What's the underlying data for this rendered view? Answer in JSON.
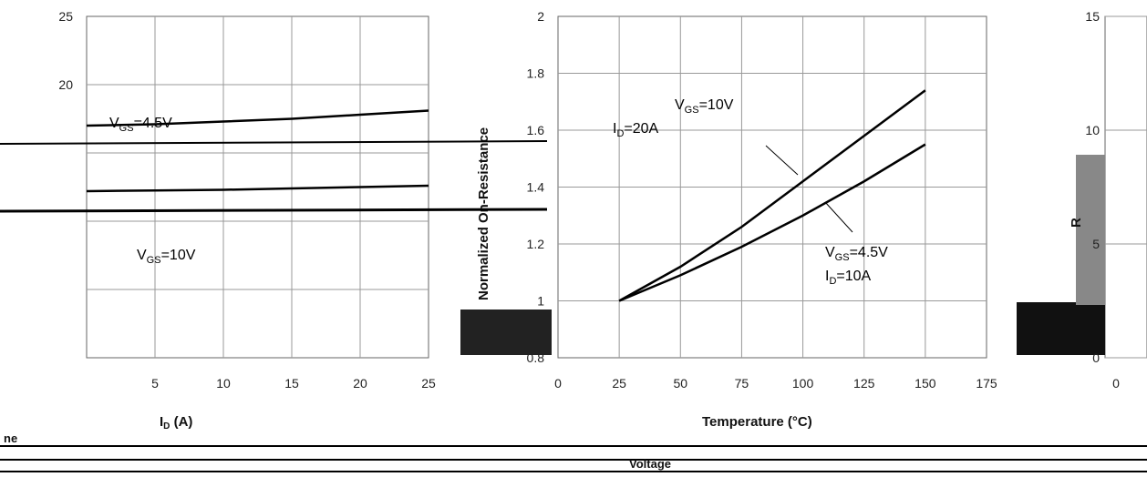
{
  "chart_data": [
    {
      "type": "line",
      "xlabel": "I₂ (A)",
      "xlabel_text": "I",
      "xlabel_sub": "D",
      "xlabel_unit": " (A)",
      "ylabel": "",
      "xlim": [
        0,
        25
      ],
      "ylim": [
        0,
        25
      ],
      "x_ticks": [
        "5",
        "10",
        "15",
        "20",
        "25"
      ],
      "y_ticks": [
        "25",
        "20"
      ],
      "grid": true,
      "series": [
        {
          "name": "V_GS=4.5V",
          "x": [
            0,
            5,
            10,
            15,
            20,
            25
          ],
          "y": [
            17.0,
            17.1,
            17.3,
            17.5,
            17.8,
            18.1
          ]
        },
        {
          "name": "V_GS=10V",
          "x": [
            0,
            5,
            10,
            15,
            20,
            25
          ],
          "y": [
            12.2,
            12.25,
            12.3,
            12.4,
            12.5,
            12.6
          ]
        }
      ],
      "annotations": [
        {
          "text": "V_GS=4.5V",
          "main": "V",
          "sub": "GS",
          "rest": "=4.5V"
        },
        {
          "text": "V_GS=10V",
          "main": "V",
          "sub": "GS",
          "rest": "=10V"
        }
      ]
    },
    {
      "type": "line",
      "xlabel": "Temperature (°C)",
      "ylabel": "Normalized On-Resistance",
      "xlim": [
        0,
        175
      ],
      "ylim": [
        0.8,
        2.0
      ],
      "x_ticks": [
        "0",
        "25",
        "50",
        "75",
        "100",
        "125",
        "150",
        "175"
      ],
      "y_ticks": [
        "2",
        "1.8",
        "1.6",
        "1.4",
        "1.2",
        "1",
        "0.8"
      ],
      "grid": true,
      "series": [
        {
          "name": "V_GS=10V, I_D=20A",
          "x": [
            25,
            50,
            75,
            100,
            125,
            150
          ],
          "y": [
            1.0,
            1.12,
            1.26,
            1.42,
            1.58,
            1.74
          ]
        },
        {
          "name": "V_GS=4.5V, I_D=10A",
          "x": [
            25,
            50,
            75,
            100,
            125,
            150
          ],
          "y": [
            1.0,
            1.09,
            1.19,
            1.3,
            1.42,
            1.55
          ]
        }
      ],
      "annotations": [
        {
          "main": "V",
          "sub": "GS",
          "rest": "=10V"
        },
        {
          "main": "I",
          "sub": "D",
          "rest": "=20A"
        },
        {
          "main": "V",
          "sub": "GS",
          "rest": "=4.5V"
        },
        {
          "main": "I",
          "sub": "D",
          "rest": "=10A"
        }
      ]
    },
    {
      "type": "line",
      "xlabel": "",
      "ylabel": "R",
      "xlim": [
        0,
        10
      ],
      "ylim": [
        0,
        15
      ],
      "x_ticks": [
        "0"
      ],
      "y_ticks": [
        "15",
        "10",
        "5",
        "0"
      ],
      "grid": true,
      "series": []
    }
  ],
  "captions": {
    "left_fragment": "ne",
    "bottom_word": "Voltage"
  },
  "colors": {
    "line": "#000000",
    "grid": "#999999",
    "bar_dark": "#222222",
    "bar_gray": "#888888"
  }
}
